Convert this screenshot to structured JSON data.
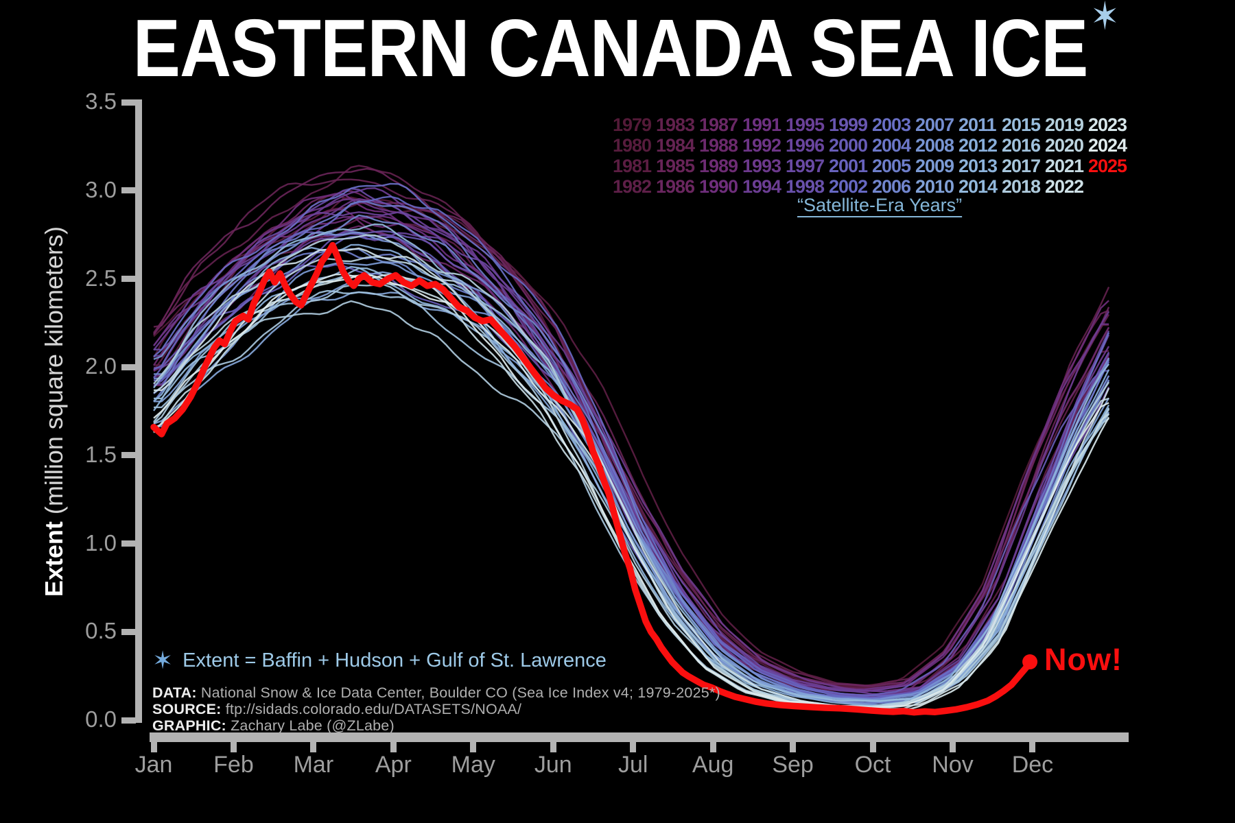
{
  "title": {
    "text": "EASTERN CANADA SEA ICE",
    "star": "✶"
  },
  "y_axis": {
    "label_bold": "Extent",
    "label_rest": " (million square kilometers)",
    "ticks": [
      "3.5",
      "3.0",
      "2.5",
      "2.0",
      "1.5",
      "1.0",
      "0.5",
      "0.0"
    ]
  },
  "x_axis": {
    "months": [
      "Jan",
      "Feb",
      "Mar",
      "Apr",
      "May",
      "Jun",
      "Jul",
      "Aug",
      "Sep",
      "Oct",
      "Nov",
      "Dec"
    ]
  },
  "legend": {
    "rows": [
      [
        "1979",
        "1983",
        "1987",
        "1991",
        "1995",
        "1999",
        "2003",
        "2007",
        "2011",
        "2015",
        "2019",
        "2023"
      ],
      [
        "1980",
        "1984",
        "1988",
        "1992",
        "1996",
        "2000",
        "2004",
        "2008",
        "2012",
        "2016",
        "2020",
        "2024"
      ],
      [
        "1981",
        "1985",
        "1989",
        "1993",
        "1997",
        "2001",
        "2005",
        "2009",
        "2013",
        "2017",
        "2021",
        "2025"
      ],
      [
        "1982",
        "1986",
        "1990",
        "1994",
        "1998",
        "2002",
        "2006",
        "2010",
        "2014",
        "2018",
        "2022"
      ]
    ],
    "highlight_year": "2025",
    "caption": "“Satellite-Era Years”"
  },
  "annotations": {
    "star_note": "Extent = Baffin + Hudson + Gulf of St. Lawrence",
    "now_label": "Now!",
    "credits": [
      {
        "label": "DATA:",
        "text": " National Snow & Ice Data Center, Boulder CO (Sea Ice Index v4; 1979-2025*)"
      },
      {
        "label": "SOURCE:",
        "text": " ftp://sidads.colorado.edu/DATASETS/NOAA/"
      },
      {
        "label": "GRAPHIC:",
        "text": " Zachary Labe (@ZLabe)"
      }
    ]
  },
  "colors": {
    "background": "#000000",
    "axis": "#b3b3b3",
    "tick_text": "#9e9e9e",
    "note_blue": "#9ecae8",
    "credit_gray": "#b0b0b0",
    "highlight_red": "#fa0f0f",
    "colormap": [
      "#541a38",
      "#682456",
      "#6f2f7e",
      "#69469f",
      "#6668c2",
      "#7692d2",
      "#8fb6dc",
      "#b6d0dc",
      "#e9f1f1"
    ]
  },
  "chart_data": {
    "type": "line",
    "title": "EASTERN CANADA SEA ICE",
    "ylabel": "Extent (million square kilometers)",
    "ylim": [
      0.0,
      3.5
    ],
    "xtick_labels": [
      "Jan",
      "Feb",
      "Mar",
      "Apr",
      "May",
      "Jun",
      "Jul",
      "Aug",
      "Sep",
      "Oct",
      "Nov",
      "Dec"
    ],
    "years_start": 1979,
    "years_end": 2025,
    "color_encoding": "one line per year 1979-2024, dark maroon-purple (oldest) to near-white light blue (newest); 2025 is thick red",
    "legend_note": "Satellite-Era Years",
    "envelope_older_years": {
      "days": [
        0,
        15,
        31,
        46,
        59,
        74,
        90,
        105,
        120,
        135,
        151,
        166,
        181,
        196,
        212,
        227,
        243,
        258,
        273,
        288,
        304,
        319,
        334,
        349,
        364
      ],
      "values": [
        2.1,
        2.42,
        2.68,
        2.86,
        2.98,
        3.06,
        3.02,
        2.92,
        2.76,
        2.52,
        2.22,
        1.8,
        1.32,
        0.92,
        0.58,
        0.38,
        0.26,
        0.2,
        0.18,
        0.22,
        0.42,
        0.8,
        1.42,
        1.95,
        2.38
      ]
    },
    "envelope_recent_years": {
      "days": [
        0,
        15,
        31,
        46,
        59,
        74,
        90,
        105,
        120,
        135,
        151,
        166,
        181,
        196,
        212,
        227,
        243,
        258,
        273,
        288,
        304,
        319,
        334,
        349,
        364
      ],
      "values": [
        1.72,
        1.98,
        2.18,
        2.33,
        2.42,
        2.48,
        2.46,
        2.36,
        2.22,
        2.02,
        1.74,
        1.38,
        0.92,
        0.55,
        0.28,
        0.15,
        0.09,
        0.07,
        0.065,
        0.08,
        0.18,
        0.42,
        0.9,
        1.4,
        1.8
      ]
    },
    "series_2025": [
      [
        0,
        1.66
      ],
      [
        3,
        1.62
      ],
      [
        5,
        1.68
      ],
      [
        8,
        1.71
      ],
      [
        11,
        1.76
      ],
      [
        14,
        1.83
      ],
      [
        17,
        1.92
      ],
      [
        20,
        2.02
      ],
      [
        23,
        2.11
      ],
      [
        25,
        2.15
      ],
      [
        27,
        2.13
      ],
      [
        29,
        2.2
      ],
      [
        31,
        2.26
      ],
      [
        34,
        2.29
      ],
      [
        36,
        2.27
      ],
      [
        38,
        2.36
      ],
      [
        40,
        2.42
      ],
      [
        42,
        2.49
      ],
      [
        44,
        2.54
      ],
      [
        46,
        2.48
      ],
      [
        48,
        2.53
      ],
      [
        50,
        2.46
      ],
      [
        52,
        2.41
      ],
      [
        54,
        2.37
      ],
      [
        56,
        2.35
      ],
      [
        58,
        2.41
      ],
      [
        60,
        2.47
      ],
      [
        62,
        2.53
      ],
      [
        64,
        2.6
      ],
      [
        66,
        2.64
      ],
      [
        68,
        2.69
      ],
      [
        70,
        2.62
      ],
      [
        72,
        2.54
      ],
      [
        74,
        2.49
      ],
      [
        76,
        2.46
      ],
      [
        78,
        2.5
      ],
      [
        80,
        2.52
      ],
      [
        83,
        2.48
      ],
      [
        86,
        2.47
      ],
      [
        89,
        2.5
      ],
      [
        92,
        2.52
      ],
      [
        95,
        2.48
      ],
      [
        98,
        2.46
      ],
      [
        101,
        2.49
      ],
      [
        104,
        2.46
      ],
      [
        107,
        2.47
      ],
      [
        110,
        2.44
      ],
      [
        113,
        2.39
      ],
      [
        116,
        2.34
      ],
      [
        119,
        2.32
      ],
      [
        122,
        2.28
      ],
      [
        125,
        2.26
      ],
      [
        128,
        2.27
      ],
      [
        131,
        2.22
      ],
      [
        134,
        2.17
      ],
      [
        137,
        2.12
      ],
      [
        140,
        2.06
      ],
      [
        143,
        2.0
      ],
      [
        146,
        1.94
      ],
      [
        149,
        1.88
      ],
      [
        152,
        1.84
      ],
      [
        155,
        1.81
      ],
      [
        158,
        1.79
      ],
      [
        161,
        1.76
      ],
      [
        163,
        1.7
      ],
      [
        165,
        1.62
      ],
      [
        167,
        1.52
      ],
      [
        169,
        1.45
      ],
      [
        171,
        1.36
      ],
      [
        173,
        1.28
      ],
      [
        175,
        1.17
      ],
      [
        177,
        1.06
      ],
      [
        179,
        0.95
      ],
      [
        181,
        0.86
      ],
      [
        183,
        0.74
      ],
      [
        185,
        0.65
      ],
      [
        187,
        0.56
      ],
      [
        189,
        0.5
      ],
      [
        191,
        0.46
      ],
      [
        193,
        0.41
      ],
      [
        195,
        0.37
      ],
      [
        197,
        0.33
      ],
      [
        199,
        0.3
      ],
      [
        201,
        0.27
      ],
      [
        203,
        0.25
      ],
      [
        206,
        0.225
      ],
      [
        209,
        0.2
      ],
      [
        212,
        0.185
      ],
      [
        215,
        0.165
      ],
      [
        218,
        0.148
      ],
      [
        221,
        0.132
      ],
      [
        225,
        0.118
      ],
      [
        229,
        0.104
      ],
      [
        233,
        0.094
      ],
      [
        238,
        0.086
      ],
      [
        243,
        0.08
      ],
      [
        249,
        0.075
      ],
      [
        255,
        0.07
      ],
      [
        261,
        0.067
      ],
      [
        267,
        0.061
      ],
      [
        272,
        0.055
      ],
      [
        277,
        0.05
      ],
      [
        281,
        0.047
      ],
      [
        285,
        0.051
      ],
      [
        289,
        0.044
      ],
      [
        293,
        0.049
      ],
      [
        297,
        0.046
      ],
      [
        301,
        0.053
      ],
      [
        305,
        0.061
      ],
      [
        309,
        0.073
      ],
      [
        313,
        0.089
      ],
      [
        317,
        0.11
      ],
      [
        320,
        0.135
      ],
      [
        323,
        0.165
      ],
      [
        326,
        0.2
      ],
      [
        328,
        0.235
      ],
      [
        330,
        0.27
      ],
      [
        332,
        0.305
      ],
      [
        333,
        0.33
      ]
    ],
    "now_point": {
      "label": "Now!",
      "day": 333,
      "value": 0.33
    }
  }
}
